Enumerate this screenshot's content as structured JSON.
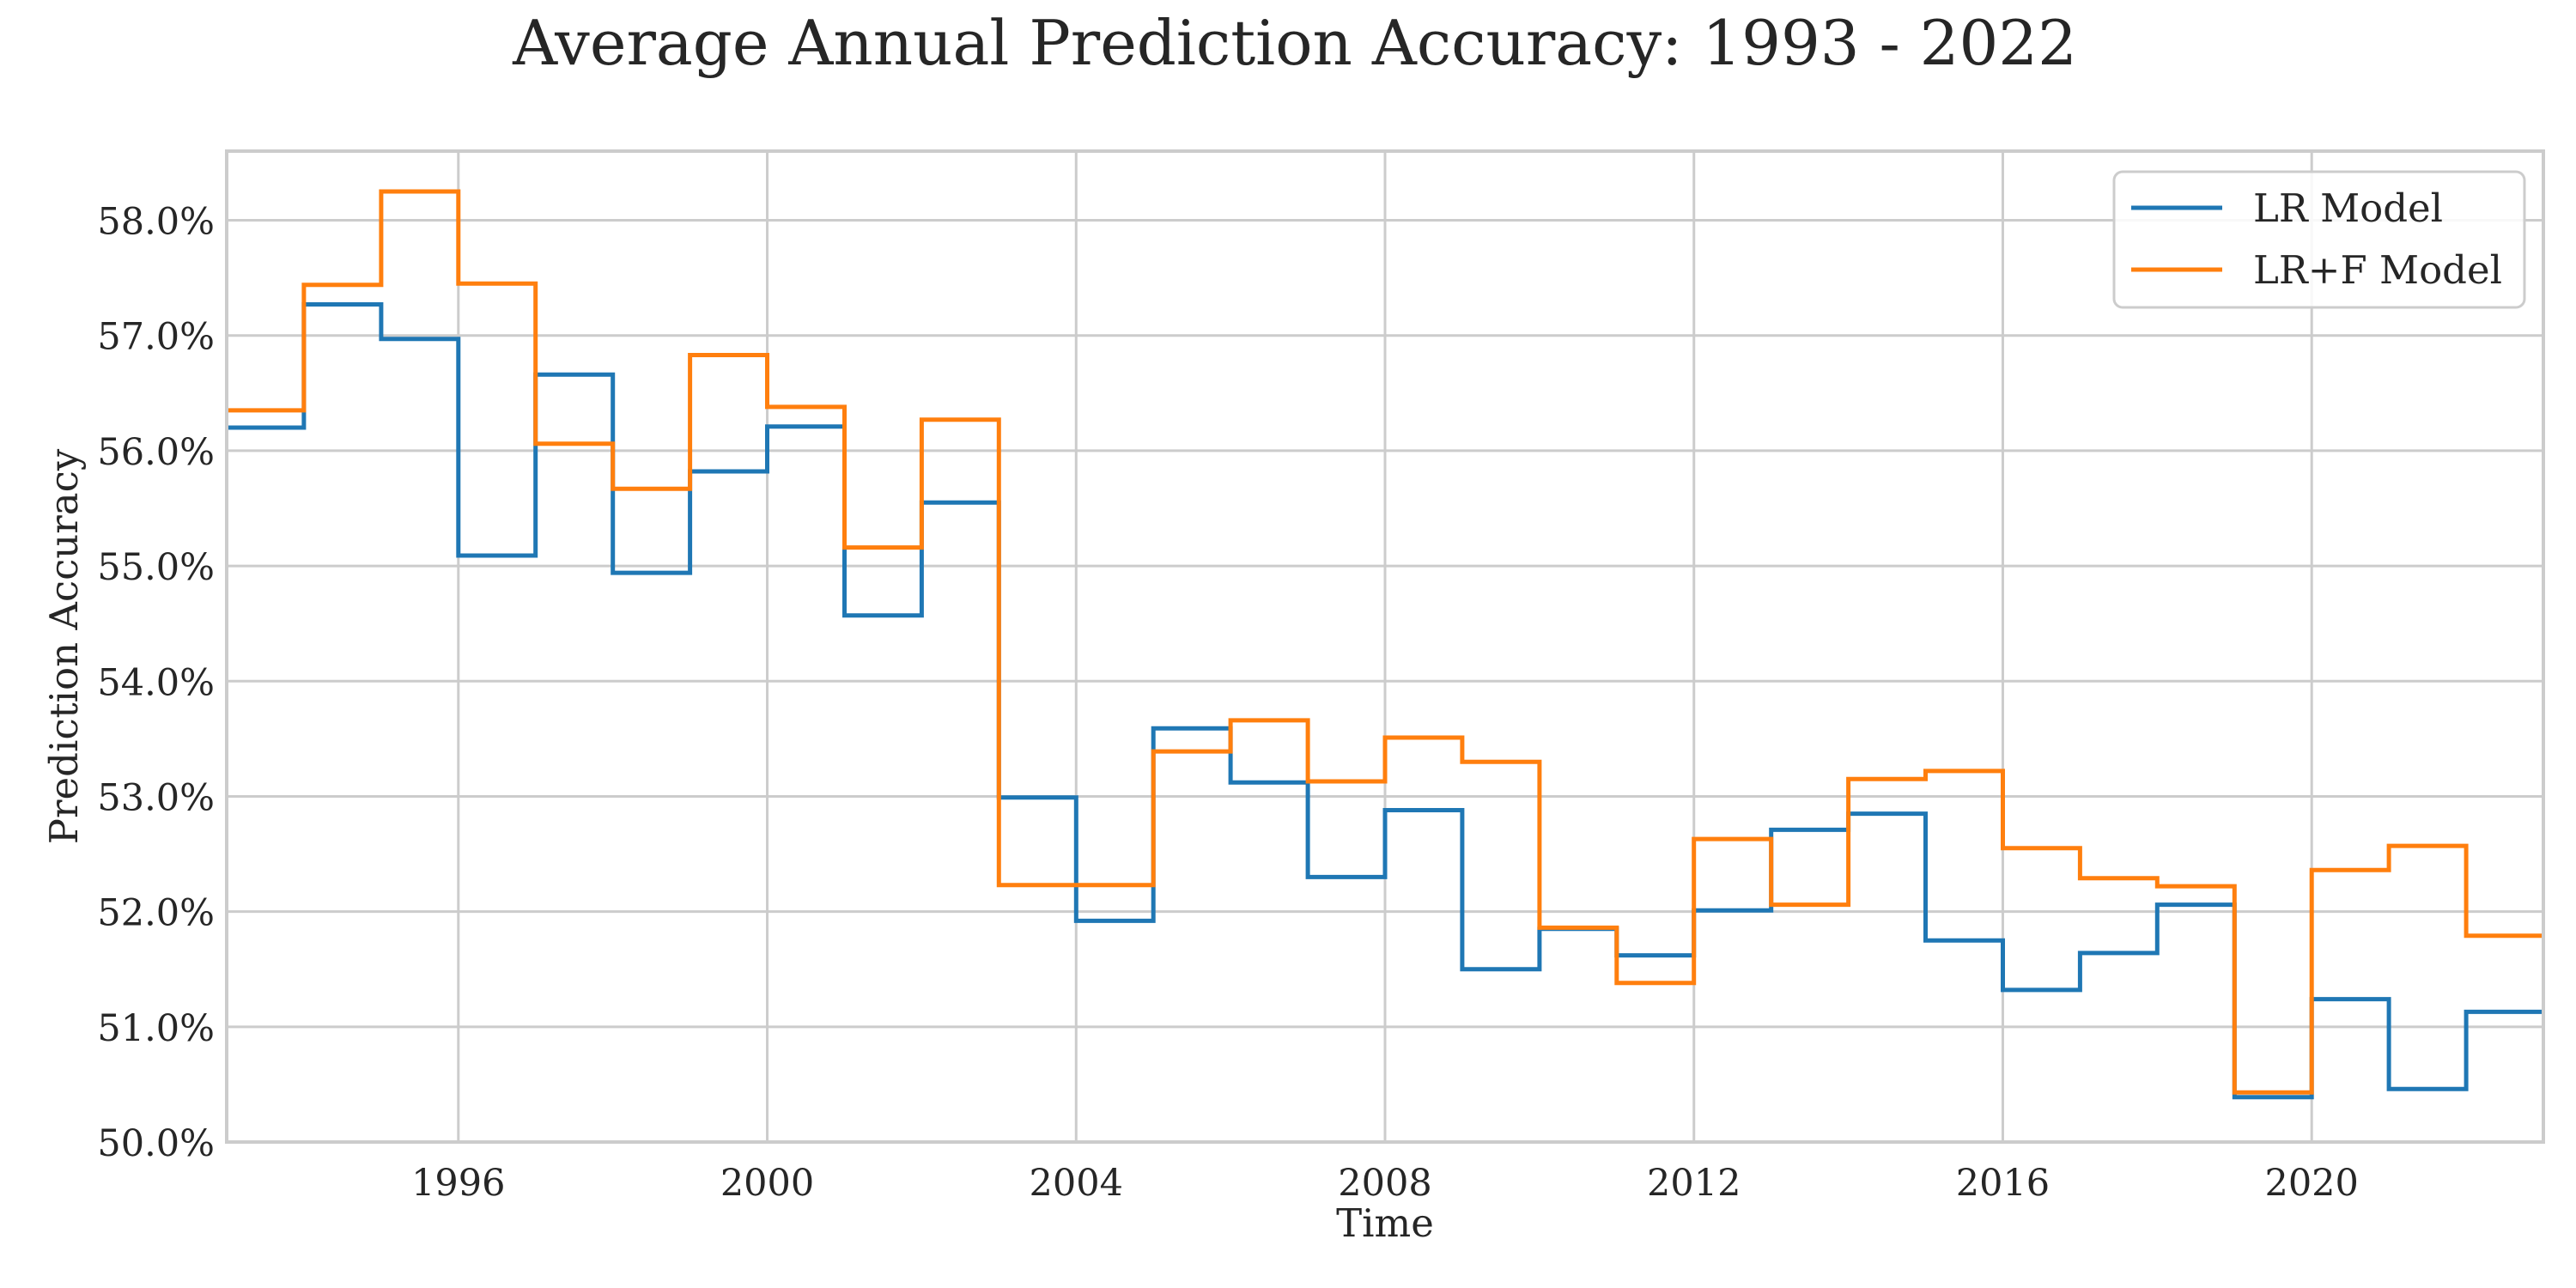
{
  "chart_data": {
    "type": "line",
    "step": "post",
    "title": "Average Annual Prediction Accuracy: 1993 - 2022",
    "xlabel": "Time",
    "ylabel": "Prediction Accuracy",
    "xlim": [
      1993,
      2023
    ],
    "ylim": [
      50.0,
      58.6
    ],
    "x_ticks": [
      1996,
      2000,
      2004,
      2008,
      2012,
      2016,
      2020
    ],
    "y_ticks": [
      50.0,
      51.0,
      52.0,
      53.0,
      54.0,
      55.0,
      56.0,
      57.0,
      58.0
    ],
    "y_tick_format": "percent_1dp",
    "grid": true,
    "legend_position": "top-right",
    "x": [
      1993,
      1994,
      1995,
      1996,
      1997,
      1998,
      1999,
      2000,
      2001,
      2002,
      2003,
      2004,
      2005,
      2006,
      2007,
      2008,
      2009,
      2010,
      2011,
      2012,
      2013,
      2014,
      2015,
      2016,
      2017,
      2018,
      2019,
      2020,
      2021,
      2022,
      2023
    ],
    "series": [
      {
        "name": "LR Model",
        "color": "#1f77b4",
        "values": [
          56.2,
          57.27,
          56.97,
          55.09,
          56.66,
          54.94,
          55.82,
          56.21,
          54.57,
          55.55,
          52.99,
          51.92,
          53.59,
          53.12,
          52.3,
          52.88,
          51.5,
          51.85,
          51.62,
          52.01,
          52.71,
          52.85,
          51.75,
          51.32,
          51.64,
          52.06,
          50.39,
          51.24,
          50.46,
          51.13,
          51.13
        ]
      },
      {
        "name": "LR+F Model",
        "color": "#ff7f0e",
        "values": [
          56.35,
          57.44,
          58.25,
          57.45,
          56.06,
          55.67,
          56.83,
          56.38,
          55.16,
          56.27,
          52.23,
          52.23,
          53.39,
          53.66,
          53.13,
          53.51,
          53.3,
          51.86,
          51.38,
          52.63,
          52.06,
          53.15,
          53.22,
          52.55,
          52.29,
          52.22,
          50.43,
          52.36,
          52.57,
          51.79,
          51.79
        ]
      }
    ]
  }
}
